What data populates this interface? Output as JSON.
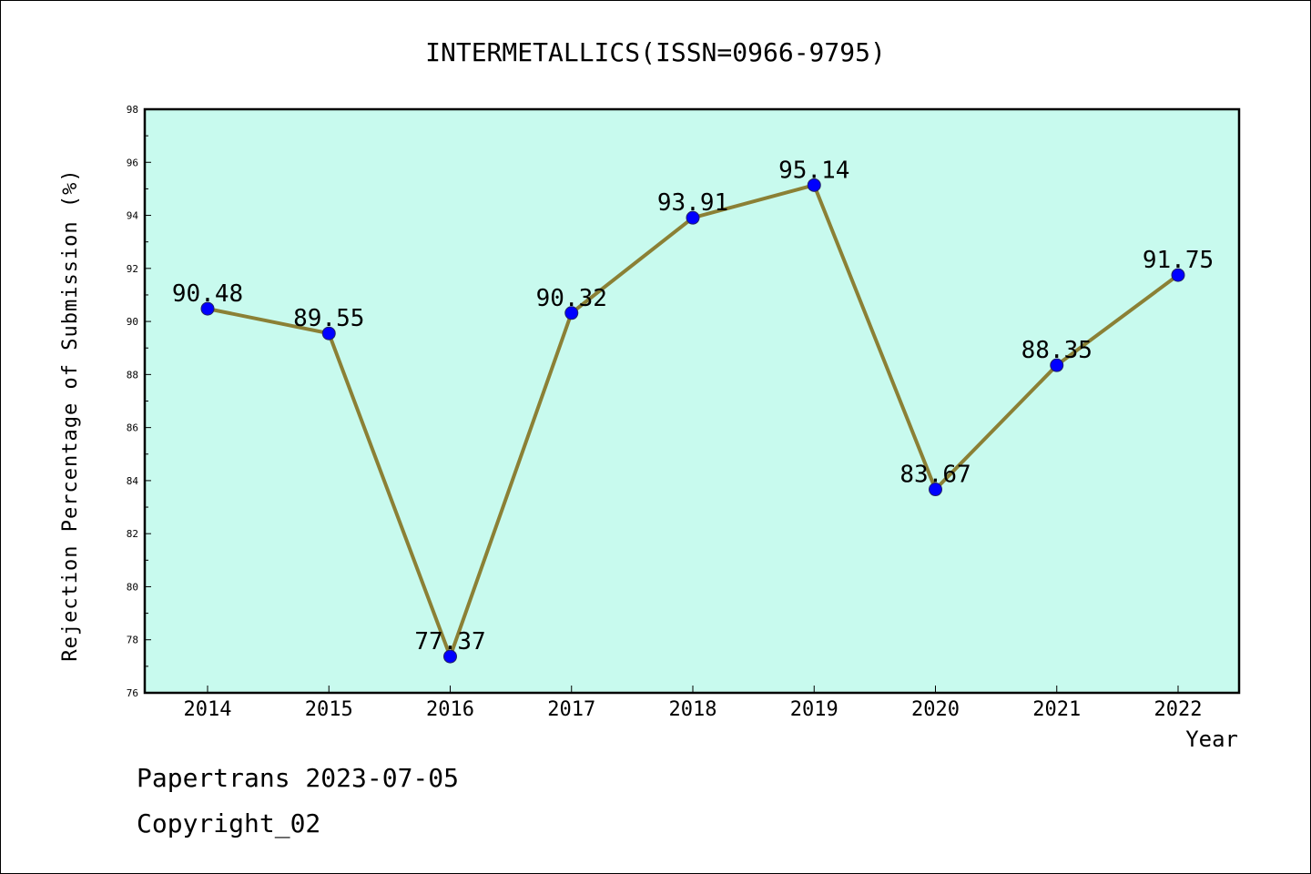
{
  "chart_data": {
    "type": "line",
    "title": "INTERMETALLICS(ISSN=0966-9795)",
    "xlabel": "Year",
    "ylabel": "Rejection Percentage of Submission (%)",
    "categories": [
      "2014",
      "2015",
      "2016",
      "2017",
      "2018",
      "2019",
      "2020",
      "2021",
      "2022"
    ],
    "values": [
      90.48,
      89.55,
      77.37,
      90.32,
      93.91,
      95.14,
      83.67,
      88.35,
      91.75
    ],
    "ylim": [
      76,
      98
    ],
    "yticks": [
      76,
      78,
      80,
      82,
      84,
      86,
      88,
      90,
      92,
      94,
      96,
      98
    ],
    "grid": false,
    "line_color": "#8B8035",
    "marker_color": "#0000FF",
    "plot_background": "#C8FAEE"
  },
  "footer": {
    "line1": "Papertrans 2023-07-05",
    "line2": "Copyright_02"
  }
}
